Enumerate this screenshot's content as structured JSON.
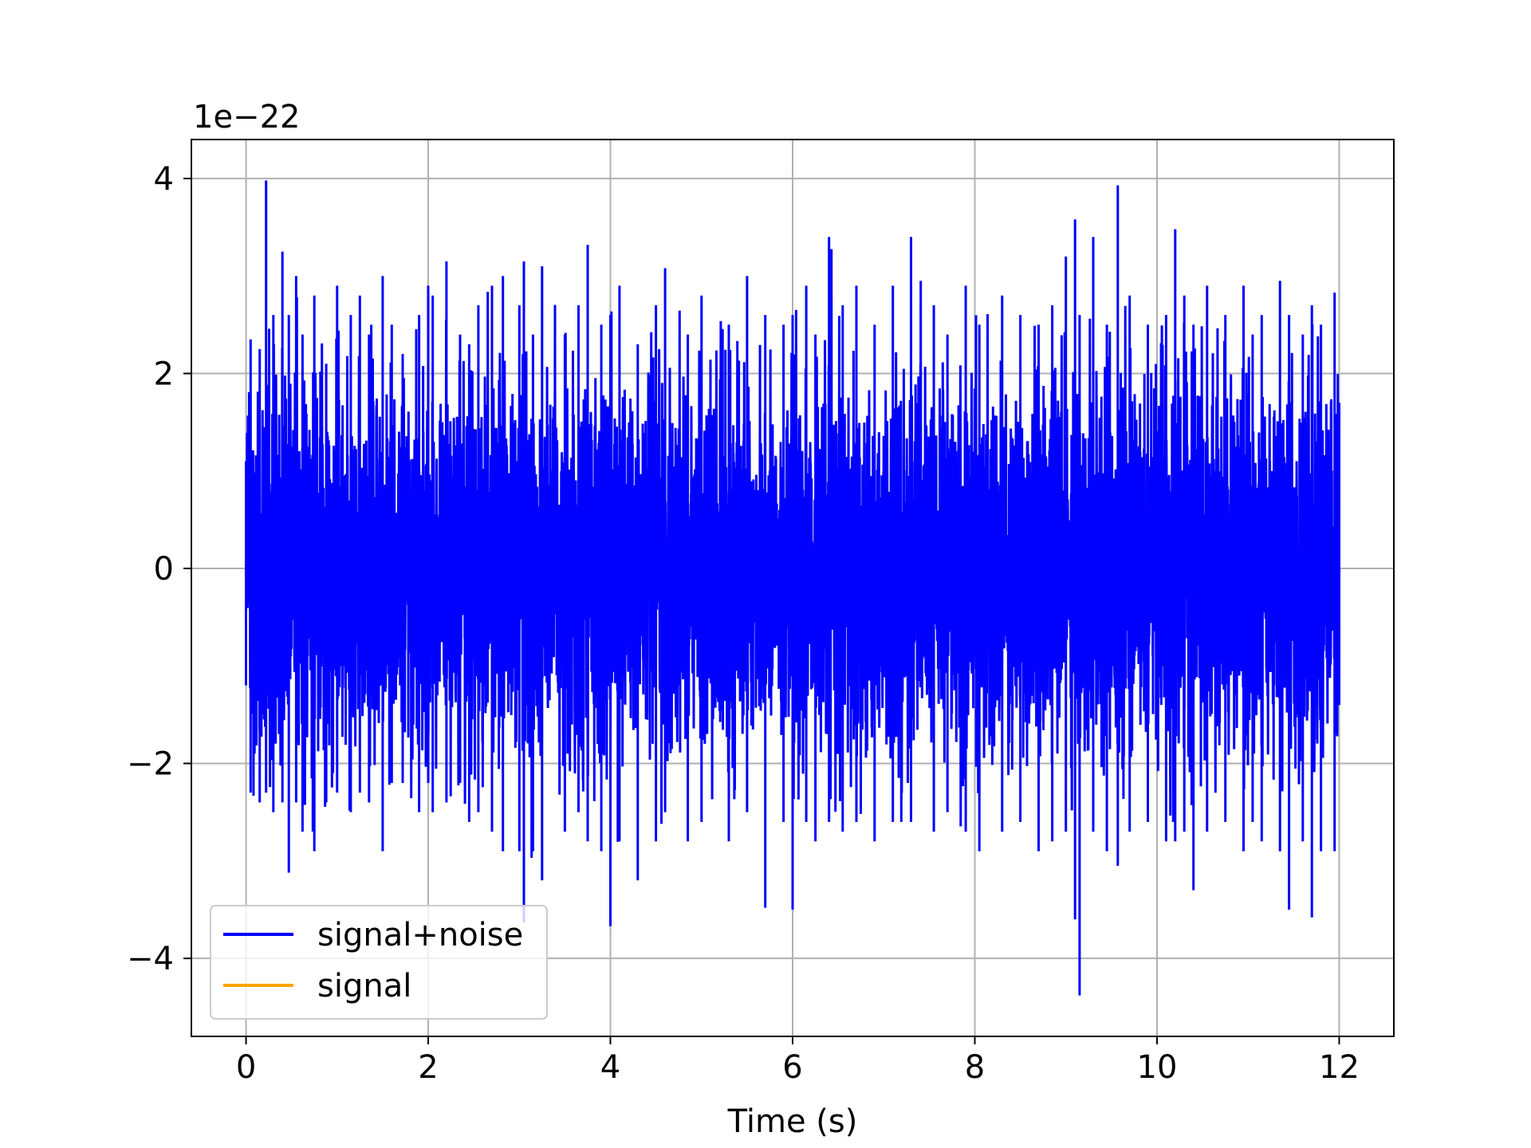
{
  "chart_data": {
    "type": "line",
    "title": "",
    "xlabel": "Time (s)",
    "ylabel": "",
    "y_offset_label": "1e−22",
    "xlim": [
      -0.6,
      12.6
    ],
    "ylim": [
      -4.8,
      4.4
    ],
    "xticks": [
      0,
      2,
      4,
      6,
      8,
      10,
      12
    ],
    "xtick_labels": [
      "0",
      "2",
      "4",
      "6",
      "8",
      "10",
      "12"
    ],
    "yticks": [
      -4,
      -2,
      0,
      2,
      4
    ],
    "ytick_labels": [
      "−4",
      "−2",
      "0",
      "2",
      "4"
    ],
    "grid": true,
    "legend_position": "lower-left",
    "series": [
      {
        "name": "signal+noise",
        "color": "#0000ff",
        "x_range": [
          0,
          12
        ],
        "approx_std": 0.85,
        "envelope": {
          "x": [
            0.0,
            0.05,
            0.15,
            0.22,
            0.3,
            0.4,
            0.47,
            0.55,
            0.62,
            0.75,
            0.88,
            1.0,
            1.15,
            1.25,
            1.35,
            1.5,
            1.6,
            1.72,
            1.9,
            2.0,
            2.05,
            2.2,
            2.35,
            2.45,
            2.55,
            2.7,
            2.82,
            3.0,
            3.05,
            3.15,
            3.25,
            3.5,
            3.65,
            3.75,
            3.9,
            4.0,
            4.1,
            4.3,
            4.5,
            4.6,
            4.85,
            5.0,
            5.3,
            5.5,
            5.7,
            5.9,
            6.0,
            6.15,
            6.25,
            6.4,
            6.55,
            6.7,
            6.9,
            7.1,
            7.3,
            7.55,
            7.7,
            7.9,
            8.05,
            8.3,
            8.5,
            8.7,
            8.85,
            9.0,
            9.1,
            9.15,
            9.3,
            9.45,
            9.57,
            9.7,
            9.9,
            10.1,
            10.2,
            10.3,
            10.4,
            10.55,
            10.75,
            10.95,
            11.05,
            11.15,
            11.35,
            11.45,
            11.6,
            11.7,
            11.8,
            11.95,
            12.0
          ],
          "upper": [
            1.1,
            2.35,
            2.25,
            3.98,
            2.6,
            3.25,
            2.6,
            3.0,
            2.4,
            2.8,
            2.1,
            2.9,
            2.6,
            2.8,
            2.4,
            3.0,
            2.5,
            2.2,
            2.6,
            2.9,
            2.8,
            3.15,
            2.4,
            2.3,
            2.7,
            2.9,
            3.0,
            2.7,
            3.15,
            2.4,
            3.1,
            2.4,
            2.7,
            3.32,
            2.5,
            2.6,
            2.9,
            2.3,
            2.7,
            3.08,
            2.4,
            2.8,
            2.5,
            3.0,
            2.6,
            2.5,
            2.6,
            2.9,
            2.4,
            3.4,
            2.7,
            2.9,
            2.5,
            2.9,
            3.4,
            2.7,
            2.4,
            2.9,
            2.5,
            2.8,
            2.6,
            2.5,
            2.7,
            3.2,
            3.58,
            2.6,
            3.4,
            2.5,
            3.93,
            2.8,
            2.5,
            2.6,
            3.48,
            2.8,
            2.5,
            2.9,
            2.6,
            2.9,
            2.4,
            2.6,
            2.95,
            2.6,
            2.4,
            2.7,
            2.5,
            2.83,
            1.7
          ],
          "lower": [
            -1.2,
            -2.3,
            -2.4,
            -2.3,
            -2.5,
            -2.4,
            -3.12,
            -2.4,
            -2.7,
            -2.9,
            -2.4,
            -2.3,
            -2.5,
            -2.3,
            -2.4,
            -2.9,
            -2.2,
            -2.2,
            -2.5,
            -2.2,
            -2.5,
            -2.4,
            -2.2,
            -2.6,
            -2.5,
            -2.7,
            -2.9,
            -2.9,
            -3.63,
            -2.9,
            -3.2,
            -2.7,
            -2.5,
            -2.8,
            -2.9,
            -3.67,
            -2.8,
            -3.2,
            -2.8,
            -2.5,
            -2.8,
            -2.6,
            -2.8,
            -2.5,
            -3.48,
            -2.6,
            -3.5,
            -2.6,
            -2.8,
            -2.6,
            -2.7,
            -2.6,
            -2.8,
            -2.6,
            -2.6,
            -2.7,
            -2.5,
            -2.7,
            -2.9,
            -2.7,
            -2.6,
            -2.9,
            -2.8,
            -2.7,
            -3.6,
            -4.38,
            -2.7,
            -2.9,
            -3.05,
            -2.7,
            -2.6,
            -2.8,
            -2.8,
            -2.7,
            -3.3,
            -2.7,
            -2.6,
            -2.9,
            -2.6,
            -2.8,
            -2.9,
            -3.5,
            -2.8,
            -3.58,
            -2.9,
            -2.9,
            -1.4
          ]
        }
      },
      {
        "name": "signal",
        "color": "#ffa500",
        "x": [],
        "y": []
      }
    ]
  }
}
